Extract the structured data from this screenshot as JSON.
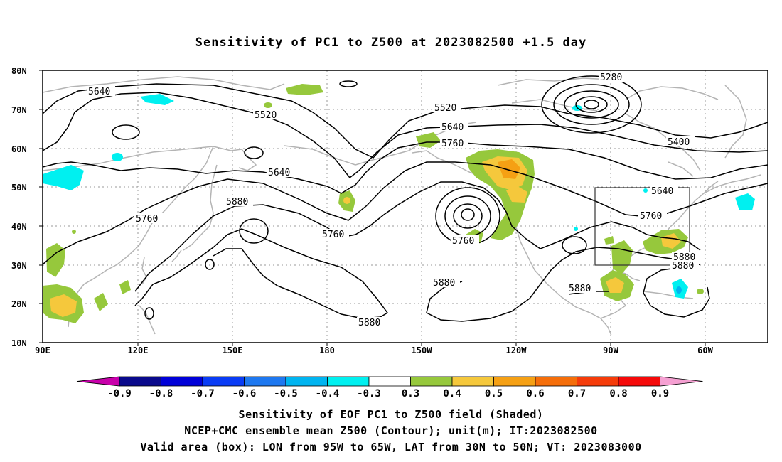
{
  "title": "Sensitivity of PC1 to Z500 at 2023082500 +1.5 day",
  "lat_labels": [
    "80N",
    "70N",
    "60N",
    "50N",
    "40N",
    "30N",
    "20N",
    "10N"
  ],
  "lon_labels": [
    "90E",
    "120E",
    "150E",
    "180",
    "150W",
    "120W",
    "90W",
    "60W"
  ],
  "contour_labels": [
    {
      "name": "c5640-a",
      "text": "5640"
    },
    {
      "name": "c5520-a",
      "text": "5520"
    },
    {
      "name": "c5520-b",
      "text": "5520"
    },
    {
      "name": "c5280",
      "text": "5280"
    },
    {
      "name": "c5640-b",
      "text": "5640"
    },
    {
      "name": "c5760-a",
      "text": "5760"
    },
    {
      "name": "c5400",
      "text": "5400"
    },
    {
      "name": "c5640-c",
      "text": "5640"
    },
    {
      "name": "c5640-d",
      "text": "5640"
    },
    {
      "name": "c5880-a",
      "text": "5880"
    },
    {
      "name": "c5760-b",
      "text": "5760"
    },
    {
      "name": "c5760-c",
      "text": "5760"
    },
    {
      "name": "c5760-d",
      "text": "5760"
    },
    {
      "name": "c5760-e",
      "text": "5760"
    },
    {
      "name": "c5880-b",
      "text": "5880"
    },
    {
      "name": "c5880-c",
      "text": "5880"
    },
    {
      "name": "c5880-d",
      "text": "5880"
    },
    {
      "name": "c5880-e",
      "text": "5880"
    },
    {
      "name": "c5880-f",
      "text": "5880"
    }
  ],
  "colorbar": {
    "labels": [
      "-0.9",
      "-0.8",
      "-0.7",
      "-0.6",
      "-0.5",
      "-0.4",
      "-0.3",
      "0.3",
      "0.4",
      "0.5",
      "0.6",
      "0.7",
      "0.8",
      "0.9"
    ],
    "colors": [
      "#0a0a8c",
      "#0000d8",
      "#0a3cf5",
      "#1e78f0",
      "#00b4f0",
      "#00f0f0",
      "#ffffff",
      "#96c83c",
      "#f5c83c",
      "#f5a014",
      "#f56e0a",
      "#f53c0a",
      "#f50a0a"
    ],
    "low_end_color": "#c800aa",
    "high_end_color": "#f5a0d2"
  },
  "footer": [
    "Sensitivity of EOF PC1 to Z500 field (Shaded)",
    "NCEP+CMC ensemble mean Z500 (Contour); unit(m); IT:2023082500",
    "Valid area (box): LON from 95W to 65W, LAT from 30N to 50N; VT: 2023083000"
  ],
  "valid_area": {
    "lon_west": "95W",
    "lon_east": "65W",
    "lat_south": "30N",
    "lat_north": "50N"
  }
}
